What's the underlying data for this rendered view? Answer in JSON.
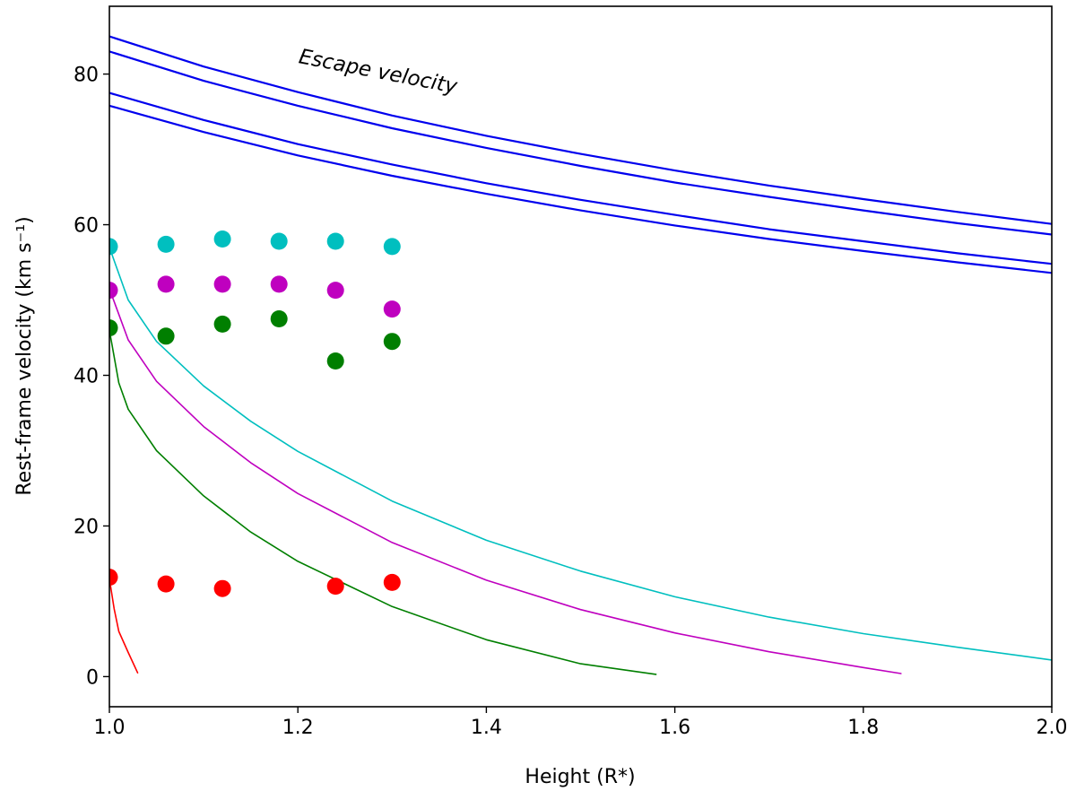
{
  "chart_data": {
    "type": "line",
    "title": "",
    "xlabel": "Height (R*)",
    "ylabel": "Rest-frame velocity (km s⁻¹)",
    "xlim": [
      1.0,
      2.0
    ],
    "ylim": [
      -4,
      89
    ],
    "xticks": [
      1.0,
      1.2,
      1.4,
      1.6,
      1.8,
      2.0
    ],
    "xtick_labels": [
      "1.0",
      "1.2",
      "1.4",
      "1.6",
      "1.8",
      "2.0"
    ],
    "yticks": [
      0,
      20,
      40,
      60,
      80
    ],
    "ytick_labels": [
      "0",
      "20",
      "40",
      "60",
      "80"
    ],
    "grid": false,
    "annotations": [
      {
        "text": "Escape velocity",
        "x": 1.2,
        "y": 81.5,
        "rotation_deg": 11
      }
    ],
    "line_series": [
      {
        "name": "escape-velocity-1",
        "color": "#0000ee",
        "width": 2.2,
        "x": [
          1.0,
          1.1,
          1.2,
          1.3,
          1.4,
          1.5,
          1.6,
          1.7,
          1.8,
          1.9,
          2.0
        ],
        "y": [
          85.0,
          81.0,
          77.6,
          74.5,
          71.8,
          69.4,
          67.2,
          65.2,
          63.4,
          61.7,
          60.1
        ]
      },
      {
        "name": "escape-velocity-2",
        "color": "#0000ee",
        "width": 2.2,
        "x": [
          1.0,
          1.1,
          1.2,
          1.3,
          1.4,
          1.5,
          1.6,
          1.7,
          1.8,
          1.9,
          2.0
        ],
        "y": [
          83.0,
          79.1,
          75.8,
          72.8,
          70.2,
          67.8,
          65.6,
          63.7,
          61.9,
          60.2,
          58.7
        ]
      },
      {
        "name": "escape-velocity-3",
        "color": "#0000ee",
        "width": 2.2,
        "x": [
          1.0,
          1.1,
          1.2,
          1.3,
          1.4,
          1.5,
          1.6,
          1.7,
          1.8,
          1.9,
          2.0
        ],
        "y": [
          77.5,
          73.9,
          70.7,
          68.0,
          65.5,
          63.3,
          61.3,
          59.4,
          57.8,
          56.2,
          54.8
        ]
      },
      {
        "name": "escape-velocity-4",
        "color": "#0000ee",
        "width": 2.2,
        "x": [
          1.0,
          1.1,
          1.2,
          1.3,
          1.4,
          1.5,
          1.6,
          1.7,
          1.8,
          1.9,
          2.0
        ],
        "y": [
          75.8,
          72.3,
          69.2,
          66.5,
          64.1,
          61.9,
          59.9,
          58.1,
          56.5,
          55.0,
          53.6
        ]
      },
      {
        "name": "trajectory-cyan",
        "color": "#00bfbf",
        "width": 1.6,
        "x": [
          1.0,
          1.02,
          1.05,
          1.1,
          1.15,
          1.2,
          1.3,
          1.4,
          1.5,
          1.6,
          1.7,
          1.8,
          1.9,
          2.0
        ],
        "y": [
          57.0,
          50.0,
          44.5,
          38.6,
          33.9,
          29.9,
          23.3,
          18.1,
          14.0,
          10.6,
          7.9,
          5.7,
          3.9,
          2.2
        ]
      },
      {
        "name": "trajectory-magenta",
        "color": "#bf00bf",
        "width": 1.6,
        "x": [
          1.0,
          1.02,
          1.05,
          1.1,
          1.15,
          1.2,
          1.3,
          1.4,
          1.5,
          1.6,
          1.7,
          1.8,
          1.84
        ],
        "y": [
          51.5,
          44.7,
          39.2,
          33.2,
          28.4,
          24.3,
          17.8,
          12.8,
          8.9,
          5.8,
          3.3,
          1.2,
          0.4
        ]
      },
      {
        "name": "trajectory-green",
        "color": "#007f00",
        "width": 1.6,
        "x": [
          1.0,
          1.01,
          1.02,
          1.05,
          1.1,
          1.15,
          1.2,
          1.3,
          1.4,
          1.5,
          1.58
        ],
        "y": [
          46.0,
          39.0,
          35.5,
          30.0,
          24.0,
          19.2,
          15.3,
          9.3,
          4.9,
          1.7,
          0.3
        ]
      },
      {
        "name": "trajectory-red",
        "color": "#ff0000",
        "width": 1.6,
        "x": [
          1.0,
          1.005,
          1.01,
          1.02,
          1.03
        ],
        "y": [
          13.0,
          9.0,
          6.0,
          3.2,
          0.5
        ]
      }
    ],
    "scatter_series": [
      {
        "name": "cyan-points",
        "color": "#00bfbf",
        "points": [
          [
            1.0,
            57.1
          ],
          [
            1.06,
            57.4
          ],
          [
            1.12,
            58.1
          ],
          [
            1.18,
            57.8
          ],
          [
            1.24,
            57.8
          ],
          [
            1.3,
            57.1
          ]
        ]
      },
      {
        "name": "magenta-points",
        "color": "#bf00bf",
        "points": [
          [
            1.0,
            51.3
          ],
          [
            1.06,
            52.1
          ],
          [
            1.12,
            52.1
          ],
          [
            1.18,
            52.1
          ],
          [
            1.24,
            51.3
          ],
          [
            1.3,
            48.8
          ]
        ]
      },
      {
        "name": "green-points",
        "color": "#007f00",
        "points": [
          [
            1.0,
            46.3
          ],
          [
            1.06,
            45.2
          ],
          [
            1.12,
            46.8
          ],
          [
            1.18,
            47.5
          ],
          [
            1.24,
            41.9
          ],
          [
            1.3,
            44.5
          ]
        ]
      },
      {
        "name": "red-points",
        "color": "#ff0000",
        "points": [
          [
            1.0,
            13.2
          ],
          [
            1.06,
            12.3
          ],
          [
            1.12,
            11.7
          ],
          [
            1.24,
            12.0
          ],
          [
            1.3,
            12.5
          ]
        ]
      }
    ]
  }
}
